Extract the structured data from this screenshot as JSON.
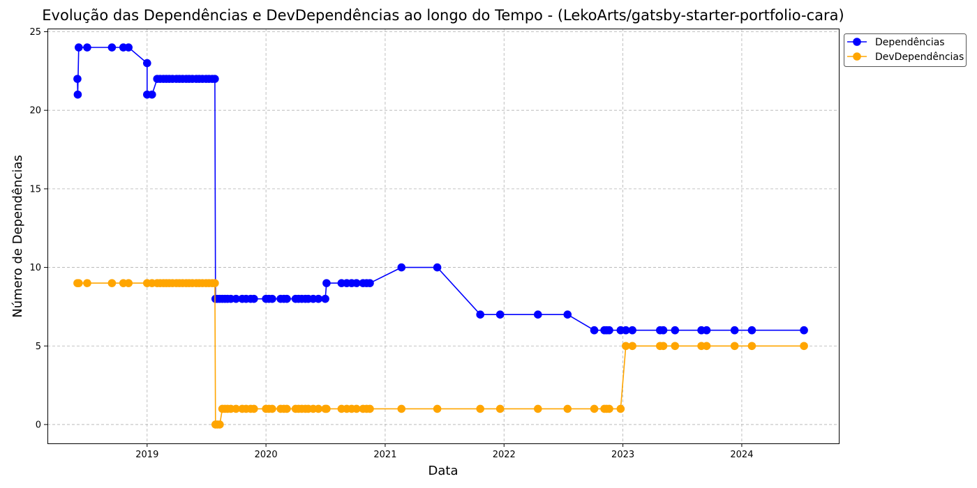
{
  "chart_data": {
    "type": "line",
    "title": "Evolução das Dependências e DevDependências ao longo do Tempo - (LekoArts/gatsby-starter-portfolio-cara)",
    "xlabel": "Data",
    "ylabel": "Número de Dependências",
    "xlim": [
      "2018-03-01",
      "2024-10-25"
    ],
    "ylim": [
      -1.2,
      25.2
    ],
    "x_ticks": [
      "2019",
      "2020",
      "2021",
      "2022",
      "2023",
      "2024"
    ],
    "y_ticks": [
      0,
      5,
      10,
      15,
      20,
      25
    ],
    "grid": true,
    "legend_position": "upper right, outside plot",
    "series": [
      {
        "name": "Dependências",
        "color": "#0000ff",
        "points": [
          [
            "2018-06-01",
            22
          ],
          [
            "2018-06-02",
            21
          ],
          [
            "2018-06-05",
            24
          ],
          [
            "2018-07-01",
            24
          ],
          [
            "2018-09-15",
            24
          ],
          [
            "2018-10-20",
            24
          ],
          [
            "2018-11-05",
            24
          ],
          [
            "2019-01-01",
            23
          ],
          [
            "2019-01-01",
            21
          ],
          [
            "2019-01-16",
            21
          ],
          [
            "2019-02-01",
            22
          ],
          [
            "2019-02-10",
            22
          ],
          [
            "2019-02-20",
            22
          ],
          [
            "2019-03-01",
            22
          ],
          [
            "2019-03-10",
            22
          ],
          [
            "2019-03-20",
            22
          ],
          [
            "2019-04-01",
            22
          ],
          [
            "2019-04-10",
            22
          ],
          [
            "2019-04-20",
            22
          ],
          [
            "2019-05-01",
            22
          ],
          [
            "2019-05-10",
            22
          ],
          [
            "2019-05-20",
            22
          ],
          [
            "2019-06-01",
            22
          ],
          [
            "2019-06-10",
            22
          ],
          [
            "2019-06-20",
            22
          ],
          [
            "2019-07-01",
            22
          ],
          [
            "2019-07-10",
            22
          ],
          [
            "2019-07-20",
            22
          ],
          [
            "2019-07-28",
            22
          ],
          [
            "2019-07-30",
            8
          ],
          [
            "2019-08-05",
            8
          ],
          [
            "2019-08-12",
            8
          ],
          [
            "2019-08-20",
            8
          ],
          [
            "2019-08-28",
            8
          ],
          [
            "2019-09-05",
            8
          ],
          [
            "2019-09-15",
            8
          ],
          [
            "2019-10-01",
            8
          ],
          [
            "2019-10-20",
            8
          ],
          [
            "2019-11-01",
            8
          ],
          [
            "2019-11-15",
            8
          ],
          [
            "2019-11-25",
            8
          ],
          [
            "2020-01-01",
            8
          ],
          [
            "2020-01-10",
            8
          ],
          [
            "2020-01-20",
            8
          ],
          [
            "2020-02-15",
            8
          ],
          [
            "2020-02-25",
            8
          ],
          [
            "2020-03-05",
            8
          ],
          [
            "2020-04-01",
            8
          ],
          [
            "2020-04-10",
            8
          ],
          [
            "2020-04-20",
            8
          ],
          [
            "2020-05-01",
            8
          ],
          [
            "2020-05-10",
            8
          ],
          [
            "2020-05-25",
            8
          ],
          [
            "2020-06-10",
            8
          ],
          [
            "2020-07-01",
            8
          ],
          [
            "2020-07-05",
            9
          ],
          [
            "2020-08-20",
            9
          ],
          [
            "2020-09-05",
            9
          ],
          [
            "2020-09-20",
            9
          ],
          [
            "2020-10-05",
            9
          ],
          [
            "2020-10-25",
            9
          ],
          [
            "2020-11-05",
            9
          ],
          [
            "2020-11-15",
            9
          ],
          [
            "2021-02-20",
            10
          ],
          [
            "2021-06-10",
            10
          ],
          [
            "2021-10-20",
            7
          ],
          [
            "2021-12-20",
            7
          ],
          [
            "2022-04-15",
            7
          ],
          [
            "2022-07-15",
            7
          ],
          [
            "2022-10-05",
            6
          ],
          [
            "2022-11-05",
            6
          ],
          [
            "2022-11-12",
            6
          ],
          [
            "2022-11-20",
            6
          ],
          [
            "2022-12-25",
            6
          ],
          [
            "2023-01-10",
            6
          ],
          [
            "2023-01-30",
            6
          ],
          [
            "2023-04-25",
            6
          ],
          [
            "2023-05-05",
            6
          ],
          [
            "2023-06-10",
            6
          ],
          [
            "2023-08-30",
            6
          ],
          [
            "2023-09-15",
            6
          ],
          [
            "2023-12-10",
            6
          ],
          [
            "2024-02-01",
            6
          ],
          [
            "2024-07-10",
            6
          ]
        ]
      },
      {
        "name": "DevDependências",
        "color": "#ffa500",
        "points": [
          [
            "2018-06-01",
            9
          ],
          [
            "2018-06-05",
            9
          ],
          [
            "2018-07-01",
            9
          ],
          [
            "2018-09-15",
            9
          ],
          [
            "2018-10-20",
            9
          ],
          [
            "2018-11-05",
            9
          ],
          [
            "2019-01-01",
            9
          ],
          [
            "2019-01-16",
            9
          ],
          [
            "2019-02-01",
            9
          ],
          [
            "2019-02-10",
            9
          ],
          [
            "2019-02-20",
            9
          ],
          [
            "2019-03-01",
            9
          ],
          [
            "2019-03-10",
            9
          ],
          [
            "2019-03-20",
            9
          ],
          [
            "2019-04-01",
            9
          ],
          [
            "2019-04-10",
            9
          ],
          [
            "2019-04-20",
            9
          ],
          [
            "2019-05-01",
            9
          ],
          [
            "2019-05-10",
            9
          ],
          [
            "2019-05-20",
            9
          ],
          [
            "2019-06-01",
            9
          ],
          [
            "2019-06-10",
            9
          ],
          [
            "2019-06-20",
            9
          ],
          [
            "2019-07-01",
            9
          ],
          [
            "2019-07-10",
            9
          ],
          [
            "2019-07-20",
            9
          ],
          [
            "2019-07-28",
            9
          ],
          [
            "2019-07-30",
            0
          ],
          [
            "2019-08-05",
            0
          ],
          [
            "2019-08-12",
            0
          ],
          [
            "2019-08-20",
            1
          ],
          [
            "2019-08-28",
            1
          ],
          [
            "2019-09-05",
            1
          ],
          [
            "2019-09-15",
            1
          ],
          [
            "2019-10-01",
            1
          ],
          [
            "2019-10-20",
            1
          ],
          [
            "2019-11-01",
            1
          ],
          [
            "2019-11-15",
            1
          ],
          [
            "2019-11-25",
            1
          ],
          [
            "2020-01-01",
            1
          ],
          [
            "2020-01-10",
            1
          ],
          [
            "2020-01-20",
            1
          ],
          [
            "2020-02-15",
            1
          ],
          [
            "2020-02-25",
            1
          ],
          [
            "2020-03-05",
            1
          ],
          [
            "2020-04-01",
            1
          ],
          [
            "2020-04-10",
            1
          ],
          [
            "2020-04-20",
            1
          ],
          [
            "2020-05-01",
            1
          ],
          [
            "2020-05-10",
            1
          ],
          [
            "2020-05-25",
            1
          ],
          [
            "2020-06-10",
            1
          ],
          [
            "2020-07-01",
            1
          ],
          [
            "2020-07-05",
            1
          ],
          [
            "2020-08-20",
            1
          ],
          [
            "2020-09-05",
            1
          ],
          [
            "2020-09-20",
            1
          ],
          [
            "2020-10-05",
            1
          ],
          [
            "2020-10-25",
            1
          ],
          [
            "2020-11-05",
            1
          ],
          [
            "2020-11-15",
            1
          ],
          [
            "2021-02-20",
            1
          ],
          [
            "2021-06-10",
            1
          ],
          [
            "2021-10-20",
            1
          ],
          [
            "2021-12-20",
            1
          ],
          [
            "2022-04-15",
            1
          ],
          [
            "2022-07-15",
            1
          ],
          [
            "2022-10-05",
            1
          ],
          [
            "2022-11-05",
            1
          ],
          [
            "2022-11-12",
            1
          ],
          [
            "2022-11-20",
            1
          ],
          [
            "2022-12-25",
            1
          ],
          [
            "2023-01-10",
            5
          ],
          [
            "2023-01-30",
            5
          ],
          [
            "2023-04-25",
            5
          ],
          [
            "2023-05-05",
            5
          ],
          [
            "2023-06-10",
            5
          ],
          [
            "2023-08-30",
            5
          ],
          [
            "2023-09-15",
            5
          ],
          [
            "2023-12-10",
            5
          ],
          [
            "2024-02-01",
            5
          ],
          [
            "2024-07-10",
            5
          ]
        ]
      }
    ]
  }
}
